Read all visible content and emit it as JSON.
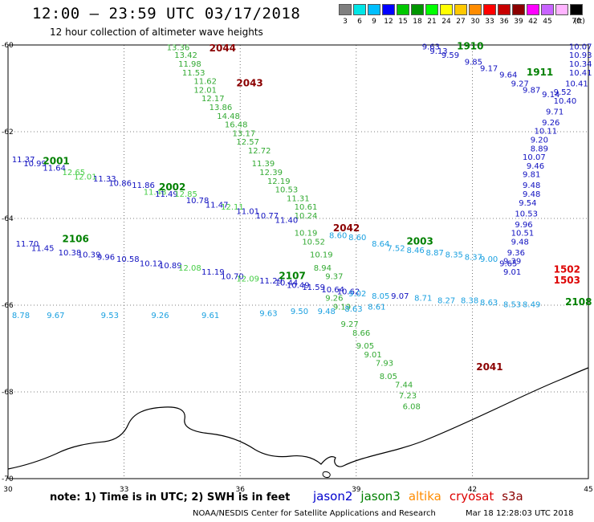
{
  "header": {
    "title": "12:00 – 23:59 UTC 03/17/2018",
    "subtitle": "12 hour collection of altimeter wave heights"
  },
  "legend": {
    "unit": "(ft)",
    "stops": [
      {
        "label": "3",
        "color": "#7f7f7f"
      },
      {
        "label": "6",
        "color": "#00e6e6"
      },
      {
        "label": "9",
        "color": "#00bfff"
      },
      {
        "label": "12",
        "color": "#0000ff"
      },
      {
        "label": "15",
        "color": "#00c800"
      },
      {
        "label": "18",
        "color": "#009600"
      },
      {
        "label": "21",
        "color": "#00ff00"
      },
      {
        "label": "24",
        "color": "#ffff00"
      },
      {
        "label": "27",
        "color": "#ffc800"
      },
      {
        "label": "30",
        "color": "#ff8c00"
      },
      {
        "label": "33",
        "color": "#ff0000"
      },
      {
        "label": "36",
        "color": "#c80000"
      },
      {
        "label": "39",
        "color": "#8b0000"
      },
      {
        "label": "42",
        "color": "#ff00ff"
      },
      {
        "label": "45",
        "color": "#c864ff"
      },
      {
        "label": "",
        "color": "#ffb4ff"
      },
      {
        "label": "70",
        "color": "#000000"
      }
    ]
  },
  "map": {
    "lon_min": 30,
    "lon_max": 45,
    "lat_min": -70,
    "lat_max": -60,
    "lon_ticks": [
      "30",
      "33",
      "36",
      "39",
      "42",
      "45"
    ],
    "lat_ticks": [
      "-60",
      "-62",
      "-64",
      "-66",
      "-68",
      "-70"
    ],
    "satellite_colors": {
      "jason2": "#0000cd",
      "jason3": "#008000",
      "altika": "#ff8c00",
      "cryosat": "#dd0000",
      "s3a": "#8b0000"
    },
    "track_ids": [
      {
        "id": "1910",
        "sat": "jason3",
        "lon": 41.6,
        "lat": -60.1
      },
      {
        "id": "1911",
        "sat": "jason3",
        "lon": 43.4,
        "lat": -60.7
      },
      {
        "id": "2044",
        "sat": "s3a",
        "lon": 35.2,
        "lat": -60.15
      },
      {
        "id": "2043",
        "sat": "s3a",
        "lon": 35.9,
        "lat": -60.95
      },
      {
        "id": "2001",
        "sat": "jason3",
        "lon": 30.9,
        "lat": -62.75
      },
      {
        "id": "2002",
        "sat": "jason3",
        "lon": 33.9,
        "lat": -63.35
      },
      {
        "id": "2042",
        "sat": "s3a",
        "lon": 38.4,
        "lat": -64.3
      },
      {
        "id": "2003",
        "sat": "jason3",
        "lon": 40.3,
        "lat": -64.6
      },
      {
        "id": "2106",
        "sat": "jason3",
        "lon": 31.4,
        "lat": -64.55
      },
      {
        "id": "2107",
        "sat": "jason3",
        "lon": 37.0,
        "lat": -65.4
      },
      {
        "id": "1502",
        "sat": "cryosat",
        "lon": 44.1,
        "lat": -65.25
      },
      {
        "id": "1503",
        "sat": "cryosat",
        "lon": 44.1,
        "lat": -65.5
      },
      {
        "id": "2108",
        "sat": "jason3",
        "lon": 44.4,
        "lat": -66.0
      },
      {
        "id": "2041",
        "sat": "s3a",
        "lon": 42.1,
        "lat": -67.5
      }
    ],
    "wave_readings": [
      {
        "v": "13.36",
        "sat": "s3a",
        "lon": 34.1,
        "lat": -60.12
      },
      {
        "v": "13.42",
        "sat": "s3a",
        "lon": 34.3,
        "lat": -60.3
      },
      {
        "v": "11.98",
        "sat": "s3a",
        "lon": 34.4,
        "lat": -60.5
      },
      {
        "v": "11.53",
        "sat": "s3a",
        "lon": 34.5,
        "lat": -60.7
      },
      {
        "v": "11.62",
        "sat": "s3a",
        "lon": 34.8,
        "lat": -60.9
      },
      {
        "v": "12.01",
        "sat": "s3a",
        "lon": 34.8,
        "lat": -61.1
      },
      {
        "v": "12.17",
        "sat": "s3a",
        "lon": 35.0,
        "lat": -61.3
      },
      {
        "v": "13.86",
        "sat": "s3a",
        "lon": 35.2,
        "lat": -61.5
      },
      {
        "v": "14.48",
        "sat": "s3a",
        "lon": 35.4,
        "lat": -61.7
      },
      {
        "v": "16.48",
        "sat": "s3a",
        "lon": 35.6,
        "lat": -61.9
      },
      {
        "v": "13.17",
        "sat": "s3a",
        "lon": 35.8,
        "lat": -62.1
      },
      {
        "v": "12.57",
        "sat": "s3a",
        "lon": 35.9,
        "lat": -62.3
      },
      {
        "v": "12.72",
        "sat": "s3a",
        "lon": 36.2,
        "lat": -62.5
      },
      {
        "v": "11.39",
        "sat": "s3a",
        "lon": 36.3,
        "lat": -62.8
      },
      {
        "v": "12.39",
        "sat": "s3a",
        "lon": 36.5,
        "lat": -63.0
      },
      {
        "v": "12.19",
        "sat": "s3a",
        "lon": 36.7,
        "lat": -63.2
      },
      {
        "v": "10.53",
        "sat": "s3a",
        "lon": 36.9,
        "lat": -63.4
      },
      {
        "v": "11.31",
        "sat": "s3a",
        "lon": 37.2,
        "lat": -63.6
      },
      {
        "v": "10.61",
        "sat": "s3a",
        "lon": 37.4,
        "lat": -63.8
      },
      {
        "v": "10.24",
        "sat": "s3a",
        "lon": 37.4,
        "lat": -64.0
      },
      {
        "v": "10.19",
        "sat": "s3a",
        "lon": 37.4,
        "lat": -64.4
      },
      {
        "v": "10.52",
        "sat": "s3a",
        "lon": 37.6,
        "lat": -64.6
      },
      {
        "v": "10.19",
        "sat": "s3a",
        "lon": 37.8,
        "lat": -64.9
      },
      {
        "v": "8.94",
        "sat": "s3a",
        "lon": 37.9,
        "lat": -65.2
      },
      {
        "v": "9.37",
        "sat": "s3a",
        "lon": 38.2,
        "lat": -65.4
      },
      {
        "v": "9.26",
        "sat": "s3a",
        "lon": 38.2,
        "lat": -65.9
      },
      {
        "v": "9.19",
        "sat": "s3a",
        "lon": 38.4,
        "lat": -66.1
      },
      {
        "v": "9.27",
        "sat": "s3a",
        "lon": 38.6,
        "lat": -66.5
      },
      {
        "v": "8.66",
        "sat": "s3a",
        "lon": 38.9,
        "lat": -66.7
      },
      {
        "v": "9.05",
        "sat": "s3a",
        "lon": 39.0,
        "lat": -67.0
      },
      {
        "v": "9.01",
        "sat": "s3a",
        "lon": 39.2,
        "lat": -67.2
      },
      {
        "v": "7.93",
        "sat": "s3a",
        "lon": 39.5,
        "lat": -67.4
      },
      {
        "v": "8.05",
        "sat": "s3a",
        "lon": 39.6,
        "lat": -67.7
      },
      {
        "v": "7.44",
        "sat": "s3a",
        "lon": 40.0,
        "lat": -67.9
      },
      {
        "v": "7.23",
        "sat": "s3a",
        "lon": 40.1,
        "lat": -68.15
      },
      {
        "v": "6.08",
        "sat": "s3a",
        "lon": 40.2,
        "lat": -68.4
      },
      {
        "v": "9.63",
        "sat": "jason2",
        "lon": 40.7,
        "lat": -60.1
      },
      {
        "v": "9.13",
        "sat": "jason2",
        "lon": 40.9,
        "lat": -60.2
      },
      {
        "v": "9.59",
        "sat": "jason2",
        "lon": 41.2,
        "lat": -60.3
      },
      {
        "v": "9.85",
        "sat": "jason2",
        "lon": 41.8,
        "lat": -60.45
      },
      {
        "v": "9.17",
        "sat": "jason2",
        "lon": 42.2,
        "lat": -60.6
      },
      {
        "v": "9.64",
        "sat": "jason2",
        "lon": 42.7,
        "lat": -60.75
      },
      {
        "v": "9.27",
        "sat": "jason2",
        "lon": 43.0,
        "lat": -60.95
      },
      {
        "v": "9.87",
        "sat": "jason2",
        "lon": 43.3,
        "lat": -61.1
      },
      {
        "v": "9.14",
        "sat": "jason2",
        "lon": 43.8,
        "lat": -61.2
      },
      {
        "v": "10.07",
        "sat": "jason2",
        "lon": 44.5,
        "lat": -60.1
      },
      {
        "v": "10.93",
        "sat": "jason2",
        "lon": 44.5,
        "lat": -60.3
      },
      {
        "v": "10.34",
        "sat": "jason2",
        "lon": 44.5,
        "lat": -60.5
      },
      {
        "v": "10.41",
        "sat": "jason2",
        "lon": 44.5,
        "lat": -60.7
      },
      {
        "v": "10.41",
        "sat": "jason2",
        "lon": 44.4,
        "lat": -60.95
      },
      {
        "v": "9.52",
        "sat": "jason2",
        "lon": 44.1,
        "lat": -61.15
      },
      {
        "v": "10.40",
        "sat": "jason2",
        "lon": 44.1,
        "lat": -61.35
      },
      {
        "v": "9.71",
        "sat": "jason2",
        "lon": 43.9,
        "lat": -61.6
      },
      {
        "v": "9.26",
        "sat": "jason2",
        "lon": 43.8,
        "lat": -61.85
      },
      {
        "v": "10.11",
        "sat": "jason2",
        "lon": 43.6,
        "lat": -62.05
      },
      {
        "v": "9.20",
        "sat": "jason2",
        "lon": 43.5,
        "lat": -62.25
      },
      {
        "v": "8.89",
        "sat": "jason2",
        "lon": 43.5,
        "lat": -62.45
      },
      {
        "v": "10.07",
        "sat": "jason2",
        "lon": 43.3,
        "lat": -62.65
      },
      {
        "v": "9.46",
        "sat": "jason2",
        "lon": 43.4,
        "lat": -62.85
      },
      {
        "v": "9.81",
        "sat": "jason2",
        "lon": 43.3,
        "lat": -63.05
      },
      {
        "v": "9.48",
        "sat": "jason2",
        "lon": 43.3,
        "lat": -63.3
      },
      {
        "v": "9.48",
        "sat": "jason2",
        "lon": 43.3,
        "lat": -63.5
      },
      {
        "v": "9.54",
        "sat": "jason2",
        "lon": 43.2,
        "lat": -63.7
      },
      {
        "v": "10.53",
        "sat": "jason2",
        "lon": 43.1,
        "lat": -63.95
      },
      {
        "v": "9.96",
        "sat": "jason2",
        "lon": 43.1,
        "lat": -64.2
      },
      {
        "v": "10.51",
        "sat": "jason2",
        "lon": 43.0,
        "lat": -64.4
      },
      {
        "v": "9.48",
        "sat": "jason2",
        "lon": 43.0,
        "lat": -64.6
      },
      {
        "v": "9.36",
        "sat": "jason2",
        "lon": 42.9,
        "lat": -64.85
      },
      {
        "v": "9.39",
        "sat": "jason2",
        "lon": 42.8,
        "lat": -65.05
      },
      {
        "v": "9.01",
        "sat": "jason2",
        "lon": 42.8,
        "lat": -65.3
      },
      {
        "v": "11.37",
        "sat": "jason2",
        "lon": 30.1,
        "lat": -62.7
      },
      {
        "v": "10.99",
        "sat": "jason2",
        "lon": 30.4,
        "lat": -62.8
      },
      {
        "v": "11.64",
        "sat": "jason2",
        "lon": 30.9,
        "lat": -62.9
      },
      {
        "v": "12.65",
        "sat": "jason3",
        "lon": 31.4,
        "lat": -63.0
      },
      {
        "v": "12.01",
        "sat": "jason3",
        "lon": 31.7,
        "lat": -63.1
      },
      {
        "v": "11.33",
        "sat": "jason2",
        "lon": 32.2,
        "lat": -63.15
      },
      {
        "v": "10.86",
        "sat": "jason2",
        "lon": 32.6,
        "lat": -63.25
      },
      {
        "v": "11.86",
        "sat": "jason2",
        "lon": 33.2,
        "lat": -63.3
      },
      {
        "v": "11.48",
        "sat": "jason3",
        "lon": 33.5,
        "lat": -63.45
      },
      {
        "v": "11.49",
        "sat": "jason2",
        "lon": 33.8,
        "lat": -63.5
      },
      {
        "v": "12.85",
        "sat": "jason3",
        "lon": 34.3,
        "lat": -63.5
      },
      {
        "v": "10.78",
        "sat": "jason2",
        "lon": 34.6,
        "lat": -63.65
      },
      {
        "v": "11.47",
        "sat": "jason2",
        "lon": 35.1,
        "lat": -63.75
      },
      {
        "v": "12.11",
        "sat": "jason3",
        "lon": 35.5,
        "lat": -63.8
      },
      {
        "v": "11.01",
        "sat": "jason2",
        "lon": 35.9,
        "lat": -63.9
      },
      {
        "v": "10.77",
        "sat": "jason2",
        "lon": 36.4,
        "lat": -64.0
      },
      {
        "v": "11.40",
        "sat": "jason2",
        "lon": 36.9,
        "lat": -64.1
      },
      {
        "v": "8.60",
        "sat": "altika",
        "lon": 38.3,
        "lat": -64.45
      },
      {
        "v": "8.60",
        "sat": "altika",
        "lon": 38.8,
        "lat": -64.5
      },
      {
        "v": "8.64",
        "sat": "altika",
        "lon": 39.4,
        "lat": -64.65
      },
      {
        "v": "7.52",
        "sat": "altika",
        "lon": 39.8,
        "lat": -64.75
      },
      {
        "v": "8.46",
        "sat": "altika",
        "lon": 40.3,
        "lat": -64.8
      },
      {
        "v": "8.87",
        "sat": "altika",
        "lon": 40.8,
        "lat": -64.85
      },
      {
        "v": "8.35",
        "sat": "altika",
        "lon": 41.3,
        "lat": -64.9
      },
      {
        "v": "8.37",
        "sat": "altika",
        "lon": 41.8,
        "lat": -64.95
      },
      {
        "v": "9.00",
        "sat": "altika",
        "lon": 42.2,
        "lat": -65.0
      },
      {
        "v": "9.65",
        "sat": "jason2",
        "lon": 42.7,
        "lat": -65.1
      },
      {
        "v": "11.70",
        "sat": "jason2",
        "lon": 30.2,
        "lat": -64.65
      },
      {
        "v": "11.45",
        "sat": "jason2",
        "lon": 30.6,
        "lat": -64.75
      },
      {
        "v": "10.38",
        "sat": "jason2",
        "lon": 31.3,
        "lat": -64.85
      },
      {
        "v": "10.39",
        "sat": "jason2",
        "lon": 31.8,
        "lat": -64.9
      },
      {
        "v": "9.96",
        "sat": "jason2",
        "lon": 32.3,
        "lat": -64.95
      },
      {
        "v": "10.58",
        "sat": "jason2",
        "lon": 32.8,
        "lat": -65.0
      },
      {
        "v": "10.12",
        "sat": "jason2",
        "lon": 33.4,
        "lat": -65.1
      },
      {
        "v": "10.89",
        "sat": "jason2",
        "lon": 33.9,
        "lat": -65.15
      },
      {
        "v": "12.08",
        "sat": "jason3",
        "lon": 34.4,
        "lat": -65.2
      },
      {
        "v": "11.19",
        "sat": "jason2",
        "lon": 35.0,
        "lat": -65.3
      },
      {
        "v": "10.70",
        "sat": "jason2",
        "lon": 35.5,
        "lat": -65.4
      },
      {
        "v": "12.09",
        "sat": "jason3",
        "lon": 35.9,
        "lat": -65.45
      },
      {
        "v": "11.29",
        "sat": "jason2",
        "lon": 36.5,
        "lat": -65.5
      },
      {
        "v": "10.44",
        "sat": "jason2",
        "lon": 36.9,
        "lat": -65.55
      },
      {
        "v": "10.49",
        "sat": "jason2",
        "lon": 37.2,
        "lat": -65.6
      },
      {
        "v": "11.59",
        "sat": "jason2",
        "lon": 37.6,
        "lat": -65.65
      },
      {
        "v": "10.64",
        "sat": "jason2",
        "lon": 38.1,
        "lat": -65.7
      },
      {
        "v": "10.62",
        "sat": "jason2",
        "lon": 38.5,
        "lat": -65.75
      },
      {
        "v": "9.02",
        "sat": "altika",
        "lon": 38.8,
        "lat": -65.8
      },
      {
        "v": "8.05",
        "sat": "altika",
        "lon": 39.4,
        "lat": -65.85
      },
      {
        "v": "9.07",
        "sat": "jason2",
        "lon": 39.9,
        "lat": -65.85
      },
      {
        "v": "8.71",
        "sat": "altika",
        "lon": 40.5,
        "lat": -65.9
      },
      {
        "v": "8.27",
        "sat": "altika",
        "lon": 41.1,
        "lat": -65.95
      },
      {
        "v": "8.38",
        "sat": "altika",
        "lon": 41.7,
        "lat": -65.95
      },
      {
        "v": "8.63",
        "sat": "altika",
        "lon": 42.2,
        "lat": -66.0
      },
      {
        "v": "8.53",
        "sat": "altika",
        "lon": 42.8,
        "lat": -66.05
      },
      {
        "v": "8.49",
        "sat": "altika",
        "lon": 43.3,
        "lat": -66.05
      },
      {
        "v": "8.78",
        "sat": "altika",
        "lon": 30.1,
        "lat": -66.3
      },
      {
        "v": "9.67",
        "sat": "altika",
        "lon": 31.0,
        "lat": -66.3
      },
      {
        "v": "9.53",
        "sat": "altika",
        "lon": 32.4,
        "lat": -66.3
      },
      {
        "v": "9.26",
        "sat": "altika",
        "lon": 33.7,
        "lat": -66.3
      },
      {
        "v": "9.61",
        "sat": "altika",
        "lon": 35.0,
        "lat": -66.3
      },
      {
        "v": "9.63",
        "sat": "altika",
        "lon": 36.5,
        "lat": -66.25
      },
      {
        "v": "9.50",
        "sat": "altika",
        "lon": 37.3,
        "lat": -66.2
      },
      {
        "v": "9.48",
        "sat": "altika",
        "lon": 38.0,
        "lat": -66.2
      },
      {
        "v": "8.63",
        "sat": "altika",
        "lon": 38.7,
        "lat": -66.15
      },
      {
        "v": "8.61",
        "sat": "altika",
        "lon": 39.3,
        "lat": -66.1
      }
    ]
  },
  "footer": {
    "note": "note: 1) Time is in UTC; 2) SWH is in feet",
    "satellites": [
      {
        "name": "jason2",
        "color": "#0000cd"
      },
      {
        "name": "jason3",
        "color": "#008000"
      },
      {
        "name": "altika",
        "color": "#ff8c00"
      },
      {
        "name": "cryosat",
        "color": "#dd0000"
      },
      {
        "name": "s3a",
        "color": "#8b0000"
      }
    ],
    "credit": "NOAA/NESDIS Center for Satellite Applications and Research",
    "timestamp": "Mar 18 12:28:03 UTC 2018"
  }
}
